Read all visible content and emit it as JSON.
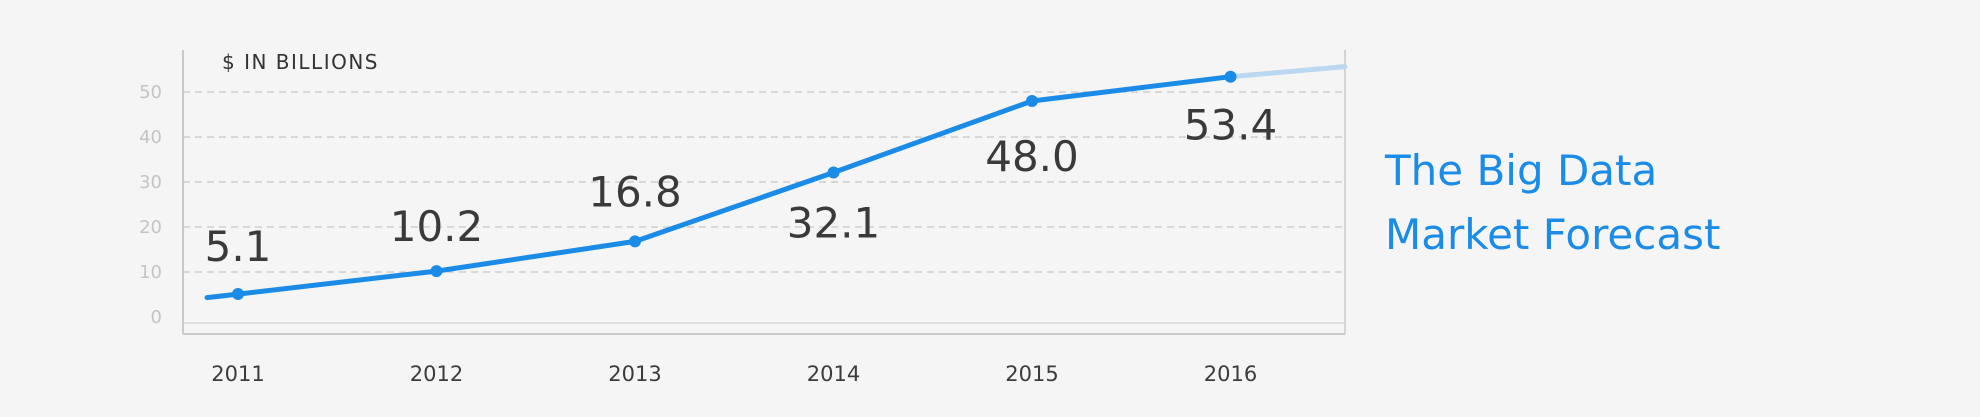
{
  "chart_data": {
    "type": "line",
    "title_lines": [
      "The Big Data",
      "Market Forecast"
    ],
    "ylabel": "$ IN BILLIONS",
    "xlabel": "",
    "categories": [
      "2011",
      "2012",
      "2013",
      "2014",
      "2015",
      "2016"
    ],
    "series": [
      {
        "values": [
          5.1,
          10.2,
          16.8,
          32.1,
          48.0,
          53.4
        ],
        "labels": [
          "5.1",
          "10.2",
          "16.8",
          "32.1",
          "48.0",
          "53.4"
        ]
      }
    ],
    "ylim": [
      0,
      60
    ],
    "yticks": [
      0,
      10,
      20,
      30,
      40,
      50
    ],
    "grid": true,
    "grid_style": "dashed",
    "colors": {
      "line": "#1a8ce8",
      "projection": "#bcd8f0",
      "title": "#1a8ce8",
      "grid": "#c8c8c8",
      "axis": "#c9c9c9",
      "text": "#3a3a3a"
    }
  }
}
